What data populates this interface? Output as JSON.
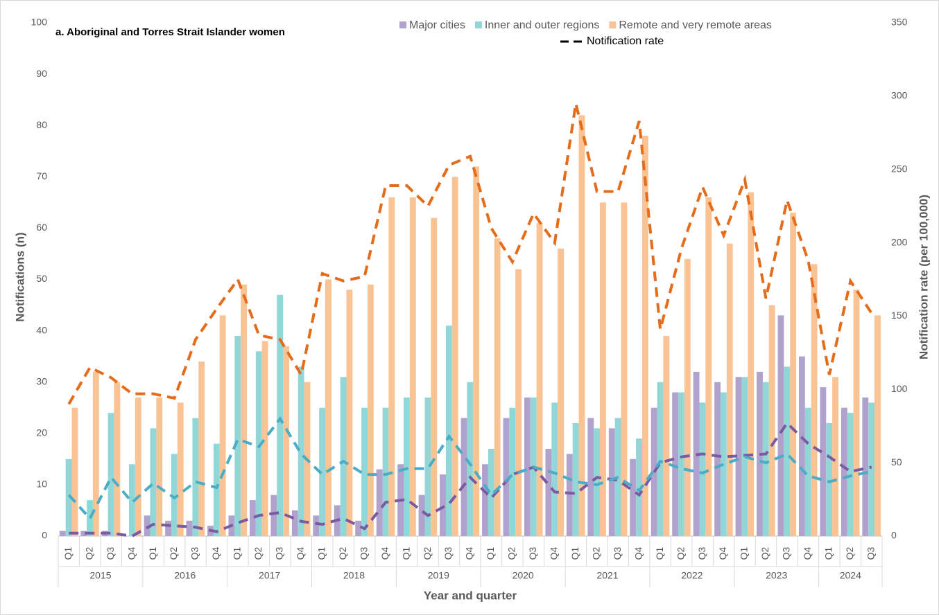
{
  "chart_data": {
    "type": "bar-line",
    "title": "a. Aboriginal and Torres Strait Islander women",
    "x_label": "Year and quarter",
    "y_label": "Notifications (n)",
    "y2_label": "Notification rate (per 100,000)",
    "rate_label": "Notification rate",
    "rate_legend_color": "#000000",
    "groups": [
      {
        "name": "2015",
        "categories": [
          "Q1",
          "Q2",
          "Q3",
          "Q4"
        ]
      },
      {
        "name": "2016",
        "categories": [
          "Q1",
          "Q2",
          "Q3",
          "Q4"
        ]
      },
      {
        "name": "2017",
        "categories": [
          "Q1",
          "Q2",
          "Q3",
          "Q4"
        ]
      },
      {
        "name": "2018",
        "categories": [
          "Q1",
          "Q2",
          "Q3",
          "Q4"
        ]
      },
      {
        "name": "2019",
        "categories": [
          "Q1",
          "Q2",
          "Q3",
          "Q4"
        ]
      },
      {
        "name": "2020",
        "categories": [
          "Q1",
          "Q2",
          "Q3",
          "Q4"
        ]
      },
      {
        "name": "2021",
        "categories": [
          "Q1",
          "Q2",
          "Q3",
          "Q4"
        ]
      },
      {
        "name": "2022",
        "categories": [
          "Q1",
          "Q2",
          "Q3",
          "Q4"
        ]
      },
      {
        "name": "2023",
        "categories": [
          "Q1",
          "Q2",
          "Q3",
          "Q4"
        ]
      },
      {
        "name": "2024",
        "categories": [
          "Q1",
          "Q2",
          "Q3"
        ]
      }
    ],
    "series": [
      {
        "name": "Major cities",
        "color": "#b0a2cc",
        "values": [
          1,
          1,
          1,
          0,
          4,
          3,
          3,
          2,
          4,
          7,
          8,
          5,
          4,
          6,
          3,
          13,
          14,
          8,
          12,
          23,
          14,
          23,
          27,
          17,
          16,
          23,
          21,
          15,
          25,
          28,
          32,
          30,
          31,
          32,
          43,
          35,
          29,
          25,
          27
        ]
      },
      {
        "name": "Inner and outer regions",
        "color": "#92d7d7",
        "values": [
          15,
          7,
          24,
          14,
          21,
          16,
          23,
          18,
          39,
          36,
          47,
          33,
          25,
          31,
          25,
          25,
          27,
          27,
          41,
          30,
          17,
          25,
          27,
          26,
          22,
          21,
          23,
          19,
          30,
          28,
          26,
          28,
          31,
          30,
          33,
          25,
          22,
          24,
          26
        ]
      },
      {
        "name": "Remote and very remote areas",
        "color": "#f9c394",
        "values": [
          25,
          32,
          30,
          27,
          27,
          26,
          34,
          43,
          49,
          38,
          37,
          30,
          50,
          48,
          49,
          66,
          66,
          62,
          70,
          72,
          58,
          52,
          61,
          56,
          82,
          65,
          65,
          78,
          39,
          54,
          66,
          57,
          67,
          45,
          63,
          53,
          31,
          48,
          43
        ]
      },
      {
        "axis": "y2",
        "color": "#7a5aa0",
        "values": [
          2,
          2,
          2,
          0,
          8,
          7,
          6,
          3,
          9,
          14,
          16,
          10,
          8,
          12,
          5,
          23,
          25,
          14,
          22,
          40,
          26,
          42,
          47,
          30,
          29,
          40,
          38,
          28,
          50,
          54,
          56,
          54,
          55,
          56,
          77,
          63,
          54,
          44,
          47
        ]
      },
      {
        "axis": "y2",
        "color": "#4bacc6",
        "values": [
          28,
          12,
          40,
          23,
          36,
          26,
          37,
          33,
          66,
          61,
          80,
          56,
          42,
          51,
          42,
          42,
          46,
          46,
          68,
          49,
          28,
          42,
          47,
          43,
          37,
          35,
          40,
          31,
          51,
          46,
          43,
          49,
          54,
          50,
          56,
          41,
          37,
          41,
          44
        ]
      },
      {
        "axis": "y2",
        "color": "#e46c1a",
        "values": [
          90,
          115,
          108,
          97,
          97,
          94,
          134,
          155,
          175,
          137,
          134,
          110,
          179,
          174,
          177,
          239,
          239,
          225,
          253,
          259,
          210,
          187,
          220,
          200,
          295,
          235,
          235,
          283,
          141,
          196,
          238,
          205,
          243,
          162,
          229,
          188,
          110,
          174,
          152
        ]
      }
    ],
    "ylim": [
      0,
      100
    ],
    "yticks": [
      0,
      10,
      20,
      30,
      40,
      50,
      60,
      70,
      80,
      90,
      100
    ],
    "y2lim": [
      0,
      350
    ],
    "y2ticks": [
      0,
      50,
      100,
      150,
      200,
      250,
      300,
      350
    ],
    "grid": false
  }
}
